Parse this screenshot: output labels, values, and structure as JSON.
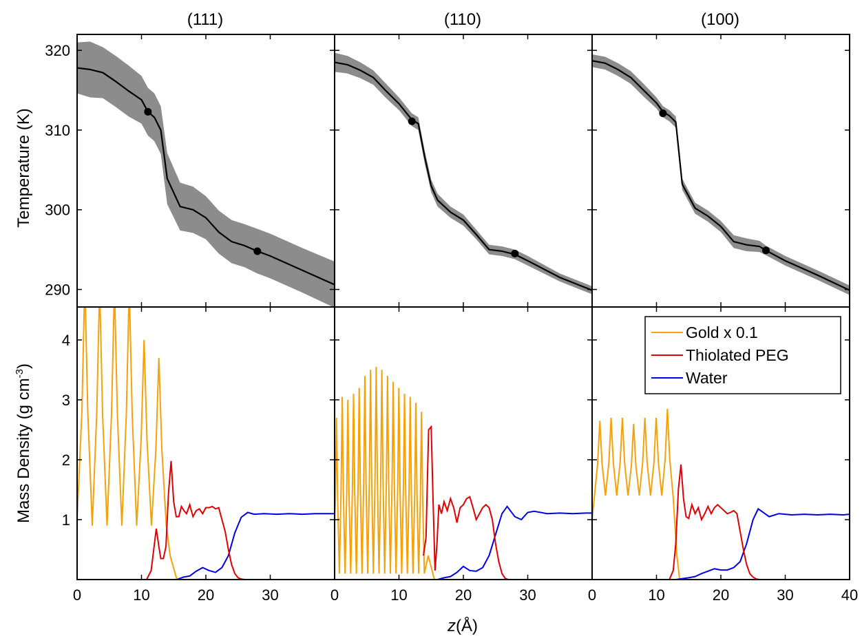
{
  "chart_data": {
    "type": "line",
    "panels": [
      "(111)",
      "(110)",
      "(100)"
    ],
    "xlabel_italic": "z",
    "xlabel_unit": "(Å)",
    "xlim": [
      0,
      40
    ],
    "xticks": [
      0,
      10,
      20,
      30
    ],
    "xticks_last": [
      0,
      10,
      20,
      30,
      40
    ],
    "top": {
      "ylabel": "Temperature (K)",
      "ylim": [
        287.8,
        322
      ],
      "yticks": [
        290,
        300,
        310,
        320
      ],
      "band_color": "#8c8c8c",
      "line_color": "#000000",
      "series": [
        {
          "panel": "(111)",
          "x": [
            0,
            2,
            4,
            6,
            8,
            10,
            11,
            12,
            13,
            14,
            16,
            18,
            20,
            22,
            24,
            26,
            28,
            30,
            35,
            40
          ],
          "y": [
            317.8,
            317.6,
            317.2,
            316.1,
            314.9,
            313.8,
            312.3,
            311.6,
            310.0,
            303.9,
            300.4,
            300.0,
            299.0,
            297.2,
            296.0,
            295.5,
            294.8,
            294.2,
            292.4,
            290.6
          ],
          "err": [
            3.2,
            3.5,
            3.2,
            3.2,
            3.2,
            3.0,
            3.0,
            3.0,
            3.0,
            3.2,
            3.0,
            2.9,
            2.7,
            2.7,
            2.7,
            2.7,
            2.8,
            2.8,
            2.8,
            2.9
          ],
          "markers_x": [
            11,
            28
          ],
          "markers_y": [
            312.3,
            294.8
          ]
        },
        {
          "panel": "(110)",
          "x": [
            0,
            2,
            4,
            6,
            8,
            10,
            12,
            13,
            14,
            15,
            16,
            18,
            20,
            22,
            24,
            26,
            28,
            30,
            35,
            40
          ],
          "y": [
            318.5,
            318.2,
            317.5,
            316.6,
            314.9,
            313.3,
            311.3,
            310.8,
            306.6,
            303.0,
            301.2,
            299.7,
            298.7,
            296.9,
            295.0,
            294.8,
            294.4,
            293.6,
            291.5,
            289.9
          ],
          "err": [
            1.2,
            1.1,
            1.0,
            0.9,
            0.9,
            0.8,
            0.8,
            0.8,
            0.8,
            0.8,
            0.8,
            0.7,
            0.7,
            0.6,
            0.6,
            0.6,
            0.6,
            0.6,
            0.5,
            0.5
          ],
          "markers_x": [
            12,
            28
          ],
          "markers_y": [
            311.1,
            294.5
          ]
        },
        {
          "panel": "(100)",
          "x": [
            0,
            2,
            4,
            6,
            8,
            10,
            11,
            12,
            13,
            14,
            16,
            18,
            20,
            22,
            24,
            26,
            27,
            30,
            35,
            40
          ],
          "y": [
            318.7,
            318.4,
            317.6,
            316.6,
            315.0,
            313.4,
            312.3,
            311.8,
            311.0,
            303.2,
            300.2,
            299.2,
            297.9,
            296.0,
            295.6,
            295.4,
            294.9,
            293.6,
            291.8,
            289.9
          ],
          "err": [
            0.8,
            0.8,
            0.8,
            0.8,
            0.8,
            0.7,
            0.7,
            0.7,
            0.7,
            0.7,
            0.7,
            0.7,
            0.7,
            0.8,
            0.8,
            0.7,
            0.6,
            0.6,
            0.6,
            0.6
          ],
          "markers_x": [
            11,
            27
          ],
          "markers_y": [
            312.1,
            294.9
          ]
        }
      ]
    },
    "bottom": {
      "ylabel": "Mass Density (g cm",
      "ylabel_sup": "-3",
      "ylabel_end": ")",
      "ylim": [
        0,
        4.55
      ],
      "yticks": [
        1,
        2,
        3,
        4
      ],
      "legend": [
        {
          "label": "Gold x 0.1",
          "color": "#f5a20a"
        },
        {
          "label": "Thiolated PEG",
          "color": "#e00000"
        },
        {
          "label": "Water",
          "color": "#0000e6"
        }
      ],
      "panels": [
        {
          "panel": "(111)",
          "gold": {
            "period": 2.3,
            "start": 1.2,
            "peaks": [
              5.0,
              4.9,
              4.9,
              4.9,
              4.0,
              3.7
            ],
            "min": 0.9,
            "end": 15.5
          },
          "peg": {
            "x": [
              10.8,
              11.5,
              12.3,
              12.7,
              13.0,
              13.4,
              13.8,
              14.2,
              14.6,
              15.0,
              15.4,
              15.8,
              16.2,
              16.6,
              17.0,
              17.5,
              18.0,
              18.5,
              19.0,
              19.5,
              20.0,
              20.5,
              21.0,
              21.5,
              22.0,
              22.5,
              23.0,
              23.5,
              24.0,
              24.5,
              25.0,
              25.5,
              26.0,
              26.5
            ],
            "y": [
              0.0,
              0.15,
              0.85,
              0.55,
              0.35,
              0.35,
              0.55,
              1.45,
              1.98,
              1.3,
              1.05,
              1.05,
              1.22,
              1.15,
              1.1,
              1.25,
              1.05,
              1.15,
              1.18,
              1.1,
              1.2,
              1.2,
              1.22,
              1.18,
              1.2,
              1.0,
              0.8,
              0.5,
              0.25,
              0.1,
              0.03,
              0.01,
              0.0,
              0.0
            ]
          },
          "water": {
            "x": [
              15.5,
              16.5,
              17.5,
              18.5,
              19.5,
              20.5,
              21.5,
              22.5,
              23.5,
              24.5,
              25.5,
              26.5,
              27.5,
              29,
              31,
              33,
              35,
              37,
              39,
              40
            ],
            "y": [
              0.0,
              0.04,
              0.06,
              0.14,
              0.2,
              0.15,
              0.12,
              0.2,
              0.4,
              0.78,
              1.04,
              1.12,
              1.09,
              1.1,
              1.09,
              1.1,
              1.09,
              1.1,
              1.1,
              1.1
            ]
          }
        },
        {
          "panel": "(110)",
          "gold": {
            "period": 0.88,
            "start": 0.3,
            "peaks": [
              2.7,
              3.05,
              3.0,
              3.1,
              3.2,
              3.4,
              3.5,
              3.55,
              3.5,
              3.4,
              3.3,
              3.2,
              3.1,
              3.05,
              2.95,
              2.8
            ],
            "min": 0.1,
            "end": 15.5
          },
          "peg": {
            "x": [
              13.8,
              14.2,
              14.6,
              15.0,
              15.3,
              15.6,
              15.9,
              16.2,
              16.6,
              17.0,
              17.5,
              18.0,
              18.5,
              19.0,
              19.5,
              20.0,
              20.5,
              21.0,
              21.5,
              22.0,
              22.5,
              23.0,
              23.5,
              24.0,
              24.5,
              25.0,
              25.5,
              26.0,
              26.5,
              27.0
            ],
            "y": [
              0.4,
              0.7,
              2.5,
              2.55,
              1.3,
              0.15,
              0.6,
              1.25,
              1.1,
              1.3,
              1.15,
              1.35,
              1.2,
              0.95,
              1.2,
              1.25,
              1.35,
              1.38,
              1.2,
              1.0,
              1.1,
              1.2,
              1.25,
              1.2,
              1.0,
              0.6,
              0.3,
              0.1,
              0.02,
              0.0
            ]
          },
          "water": {
            "x": [
              16,
              17,
              18,
              19,
              20,
              21,
              22,
              23,
              24,
              25,
              26,
              26.8,
              28,
              29,
              30,
              31,
              33,
              35,
              37,
              39,
              40
            ],
            "y": [
              0.0,
              0.03,
              0.05,
              0.12,
              0.22,
              0.15,
              0.14,
              0.2,
              0.4,
              0.75,
              1.1,
              1.22,
              1.05,
              1.0,
              1.12,
              1.14,
              1.1,
              1.11,
              1.1,
              1.11,
              1.11
            ]
          }
        },
        {
          "panel": "(100)",
          "gold": {
            "period": 1.75,
            "start": 1.2,
            "peaks": [
              2.65,
              2.7,
              2.7,
              2.6,
              2.7,
              2.7,
              2.85
            ],
            "min": 1.4,
            "end": 13.6
          },
          "peg": {
            "x": [
              12.0,
              12.6,
              13.0,
              13.4,
              13.8,
              14.2,
              14.6,
              15.0,
              15.5,
              16.0,
              16.5,
              17.0,
              17.5,
              18.0,
              18.5,
              19.0,
              19.5,
              20.0,
              20.5,
              21.0,
              21.5,
              22.0,
              22.5,
              23.0,
              23.5,
              24.0,
              24.5,
              25.0,
              25.5,
              26.0
            ],
            "y": [
              0.0,
              0.15,
              0.6,
              1.5,
              1.92,
              1.35,
              1.05,
              1.02,
              1.25,
              1.1,
              1.2,
              1.0,
              1.1,
              1.22,
              1.1,
              1.2,
              1.25,
              1.2,
              1.15,
              1.1,
              1.12,
              1.15,
              1.1,
              0.8,
              0.5,
              0.25,
              0.1,
              0.04,
              0.01,
              0.0
            ]
          },
          "water": {
            "x": [
              13,
              15,
              16,
              17,
              18,
              19,
              20,
              21,
              22,
              23,
              24,
              25,
              25.8,
              26.6,
              27.5,
              29,
              31,
              33,
              35,
              37,
              39,
              40
            ],
            "y": [
              0.0,
              0.03,
              0.05,
              0.1,
              0.14,
              0.18,
              0.16,
              0.16,
              0.2,
              0.3,
              0.6,
              1.0,
              1.18,
              1.12,
              1.05,
              1.1,
              1.08,
              1.09,
              1.08,
              1.09,
              1.08,
              1.09
            ]
          }
        }
      ]
    }
  }
}
